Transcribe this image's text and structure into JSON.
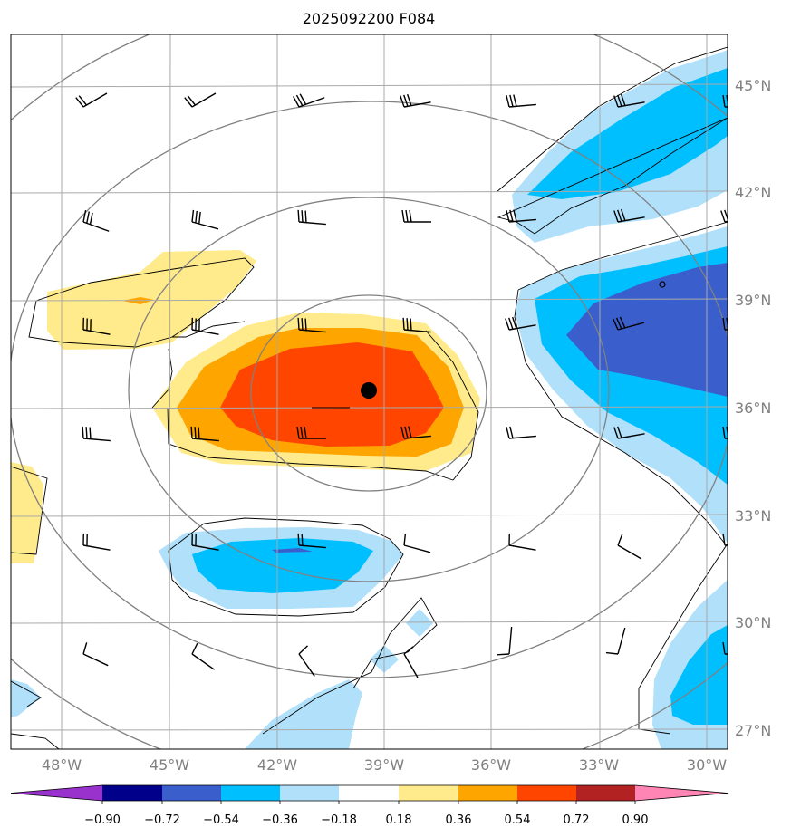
{
  "title": "2025092200 F084",
  "chart_data": {
    "type": "heatmap",
    "title": "2025092200 F084",
    "projection": "polar-stereographic map, lon/lat graticule",
    "lon_range": [
      -49.5,
      -29.5
    ],
    "lat_range": [
      26.5,
      46.5
    ],
    "lat_ticks": [
      {
        "value": 45,
        "label": "45°N"
      },
      {
        "value": 42,
        "label": "42°N"
      },
      {
        "value": 39,
        "label": "39°N"
      },
      {
        "value": 36,
        "label": "36°N"
      },
      {
        "value": 33,
        "label": "33°N"
      },
      {
        "value": 30,
        "label": "30°N"
      },
      {
        "value": 27,
        "label": "27°N"
      }
    ],
    "lon_ticks": [
      {
        "value": -48,
        "label": "48°W"
      },
      {
        "value": -45,
        "label": "45°W"
      },
      {
        "value": -42,
        "label": "42°W"
      },
      {
        "value": -39,
        "label": "39°W"
      },
      {
        "value": -36,
        "label": "36°W"
      },
      {
        "value": -33,
        "label": "33°W"
      },
      {
        "value": -30,
        "label": "30°W"
      }
    ],
    "grid": true,
    "center_marker": {
      "lon": -39.4,
      "lat": 36.5,
      "label": ""
    },
    "colorbar": {
      "orientation": "horizontal",
      "extend": "both",
      "levels": [
        -0.9,
        -0.72,
        -0.54,
        -0.36,
        -0.18,
        0.18,
        0.36,
        0.54,
        0.72,
        0.9
      ],
      "tick_labels": [
        "−0.90",
        "−0.72",
        "−0.54",
        "−0.36",
        "−0.18",
        "0.18",
        "0.36",
        "0.54",
        "0.72",
        "0.90"
      ],
      "colors": [
        "#9932cc",
        "#00008b",
        "#3a5fcd",
        "#00bfff",
        "#b0e0fa",
        "#ffffff",
        "#ffeb8c",
        "#ffa500",
        "#ff4500",
        "#b22222",
        "#ff86b4"
      ]
    },
    "filled_regions": [
      {
        "level": 0.18,
        "color": "#ffeb8c",
        "center": {
          "lon": -39.5,
          "lat": 36.3
        }
      },
      {
        "level": 0.36,
        "color": "#ffa500",
        "center": {
          "lon": -39.3,
          "lat": 36.3
        }
      },
      {
        "level": 0.54,
        "color": "#ff4500",
        "center": {
          "lon": -39.6,
          "lat": 36.2
        }
      },
      {
        "level": 0.18,
        "color": "#ffeb8c",
        "center": {
          "lon": -44.5,
          "lat": 38.8
        }
      },
      {
        "level": -0.18,
        "color": "#b0e0fa",
        "center": {
          "lon": -41.5,
          "lat": 32.1
        }
      },
      {
        "level": -0.36,
        "color": "#00bfff",
        "center": {
          "lon": -41.3,
          "lat": 32.1
        }
      },
      {
        "level": -0.18,
        "color": "#b0e0fa",
        "center": {
          "lon": -32.5,
          "lat": 43.5
        }
      },
      {
        "level": -0.36,
        "color": "#00bfff",
        "center": {
          "lon": -32.0,
          "lat": 43.8
        }
      },
      {
        "level": -0.18,
        "color": "#b0e0fa",
        "center": {
          "lon": -31.5,
          "lat": 37.5
        }
      },
      {
        "level": -0.36,
        "color": "#00bfff",
        "center": {
          "lon": -31.0,
          "lat": 37.8
        }
      },
      {
        "level": -0.54,
        "color": "#3a5fcd",
        "center": {
          "lon": -30.8,
          "lat": 38.3
        }
      },
      {
        "level": -0.36,
        "color": "#00bfff",
        "center": {
          "lon": -30.5,
          "lat": 28.5
        }
      },
      {
        "level": 0.18,
        "color": "#ffeb8c",
        "center": {
          "lon": -49.2,
          "lat": 33.8
        }
      }
    ],
    "wind_barbs_grid": {
      "lons": [
        -47,
        -44,
        -41,
        -38,
        -35,
        -32,
        -29.5
      ],
      "lats": [
        44,
        41,
        38,
        35,
        32,
        29
      ]
    }
  }
}
